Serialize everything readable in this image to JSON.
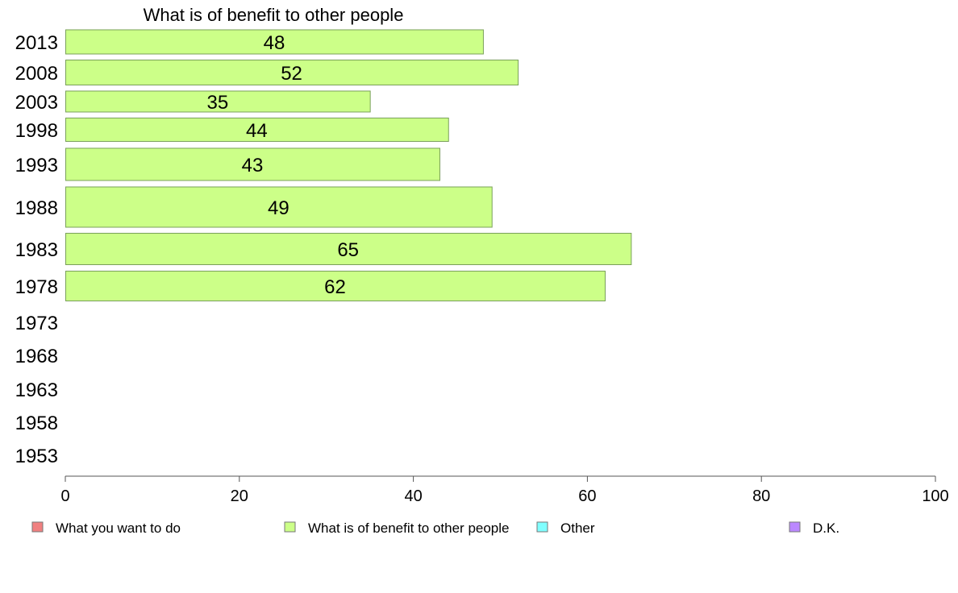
{
  "chart_data": {
    "type": "bar",
    "orientation": "horizontal",
    "title": "What is of benefit to other people",
    "categories": [
      "2013",
      "2008",
      "2003",
      "1998",
      "1993",
      "1988",
      "1983",
      "1978",
      "1973",
      "1968",
      "1963",
      "1958",
      "1953"
    ],
    "series": [
      {
        "name": "What is of benefit to other people",
        "values": [
          48,
          52,
          35,
          44,
          43,
          49,
          65,
          62,
          null,
          null,
          null,
          null,
          null
        ]
      }
    ],
    "xlim": [
      0,
      100
    ],
    "xticks": [
      0,
      20,
      40,
      60,
      80,
      100
    ],
    "grid": false,
    "legend": {
      "placement": "bottom",
      "entries": [
        {
          "label": "What you want to do",
          "color": "#f08080"
        },
        {
          "label": "What is of benefit to other people",
          "color": "#ccff88"
        },
        {
          "label": "Other",
          "color": "#80ffff"
        },
        {
          "label": "D.K.",
          "color": "#bb88ff"
        }
      ]
    }
  },
  "colors": {
    "bar_fill": "#ccff88",
    "bar_stroke": "#7aa05a",
    "axis": "#555555"
  }
}
